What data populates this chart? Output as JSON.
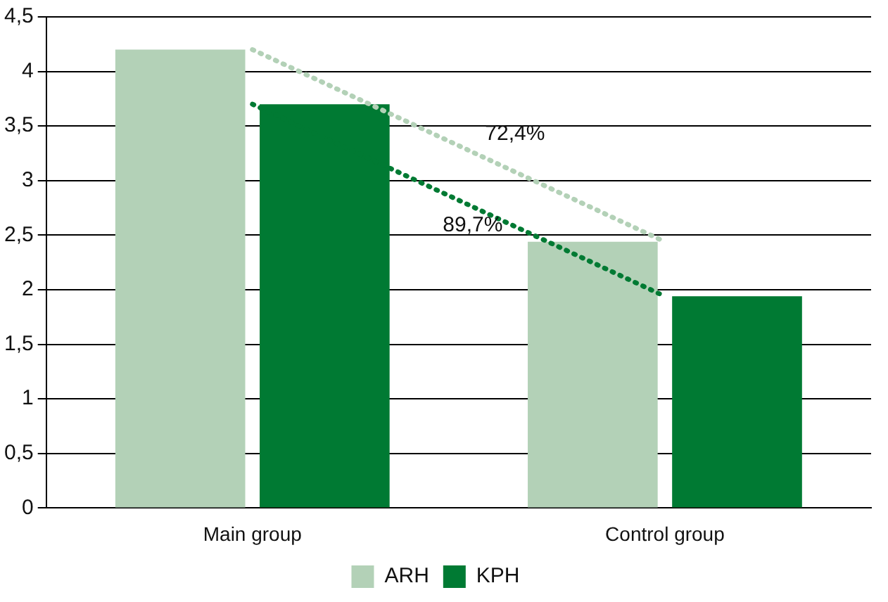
{
  "chart_data": {
    "type": "bar",
    "categories": [
      "Main group",
      "Control group"
    ],
    "series": [
      {
        "name": "ARH",
        "color": "#b3d1b7",
        "values": [
          4.2,
          2.44
        ]
      },
      {
        "name": "KPH",
        "color": "#007a33",
        "values": [
          3.7,
          1.94
        ]
      },
      {
        "type": "line",
        "color": "#b3d1b7",
        "line_style": "dotted",
        "values": [
          4.2,
          2.44
        ]
      },
      {
        "type": "line",
        "color": "#007a33",
        "line_style": "dotted",
        "values": [
          3.7,
          1.94
        ]
      }
    ],
    "ylim": [
      0,
      4.5
    ],
    "yticks": [
      0,
      {
        "value": 0.5,
        "label": "0,5"
      },
      1,
      {
        "value": 1.5,
        "label": "1,5"
      },
      2,
      {
        "value": 2.5,
        "label": "2,5"
      },
      3,
      {
        "value": 3.5,
        "label": "3,5"
      },
      4,
      {
        "value": 4.5,
        "label": "4,5"
      }
    ],
    "grid": "y",
    "legend": "bottom",
    "marker": "none",
    "annotations": [
      "72,4%",
      "89,7%"
    ]
  }
}
